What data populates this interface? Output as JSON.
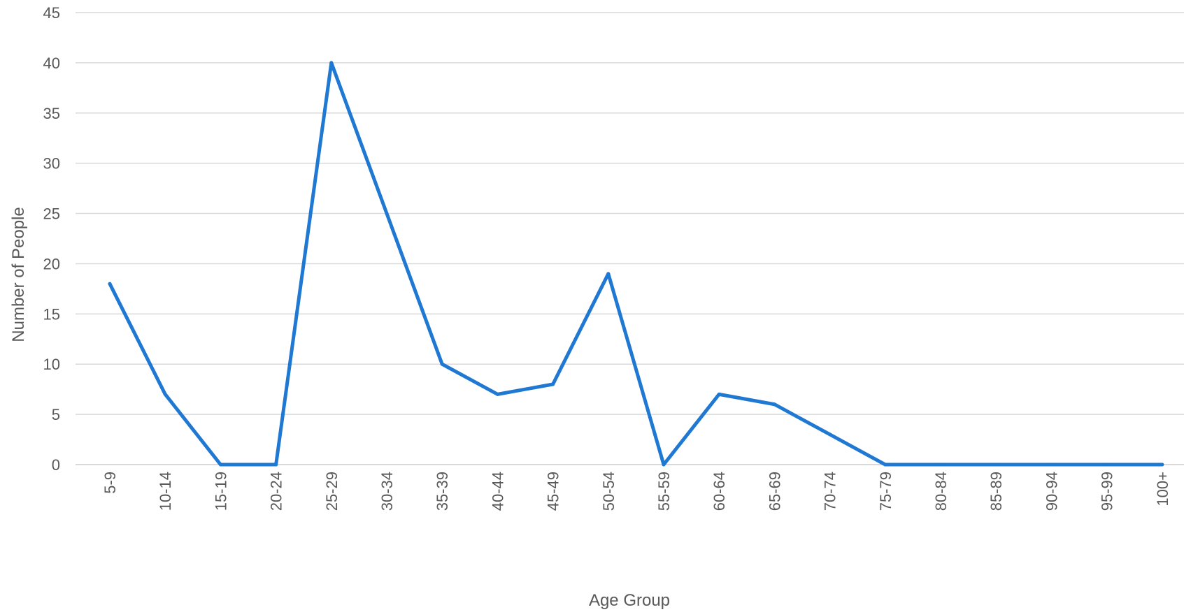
{
  "chart_data": {
    "type": "line",
    "title": "",
    "xlabel": "Age Group",
    "ylabel": "Number of People",
    "categories": [
      "5-9",
      "10-14",
      "15-19",
      "20-24",
      "25-29",
      "30-34",
      "35-39",
      "40-44",
      "45-49",
      "50-54",
      "55-59",
      "60-64",
      "65-69",
      "70-74",
      "75-79",
      "80-84",
      "85-89",
      "90-94",
      "95-99",
      "100+"
    ],
    "series": [
      {
        "values": [
          18,
          7,
          0,
          0,
          40,
          25,
          10,
          7,
          8,
          19,
          0,
          7,
          6,
          3,
          0,
          0,
          0,
          0,
          0,
          0
        ],
        "color": "#1f78d1"
      }
    ],
    "ylim": [
      0,
      45
    ],
    "yticks": [
      0,
      5,
      10,
      15,
      20,
      25,
      30,
      35,
      40,
      45
    ],
    "grid": true,
    "legend": "none"
  }
}
